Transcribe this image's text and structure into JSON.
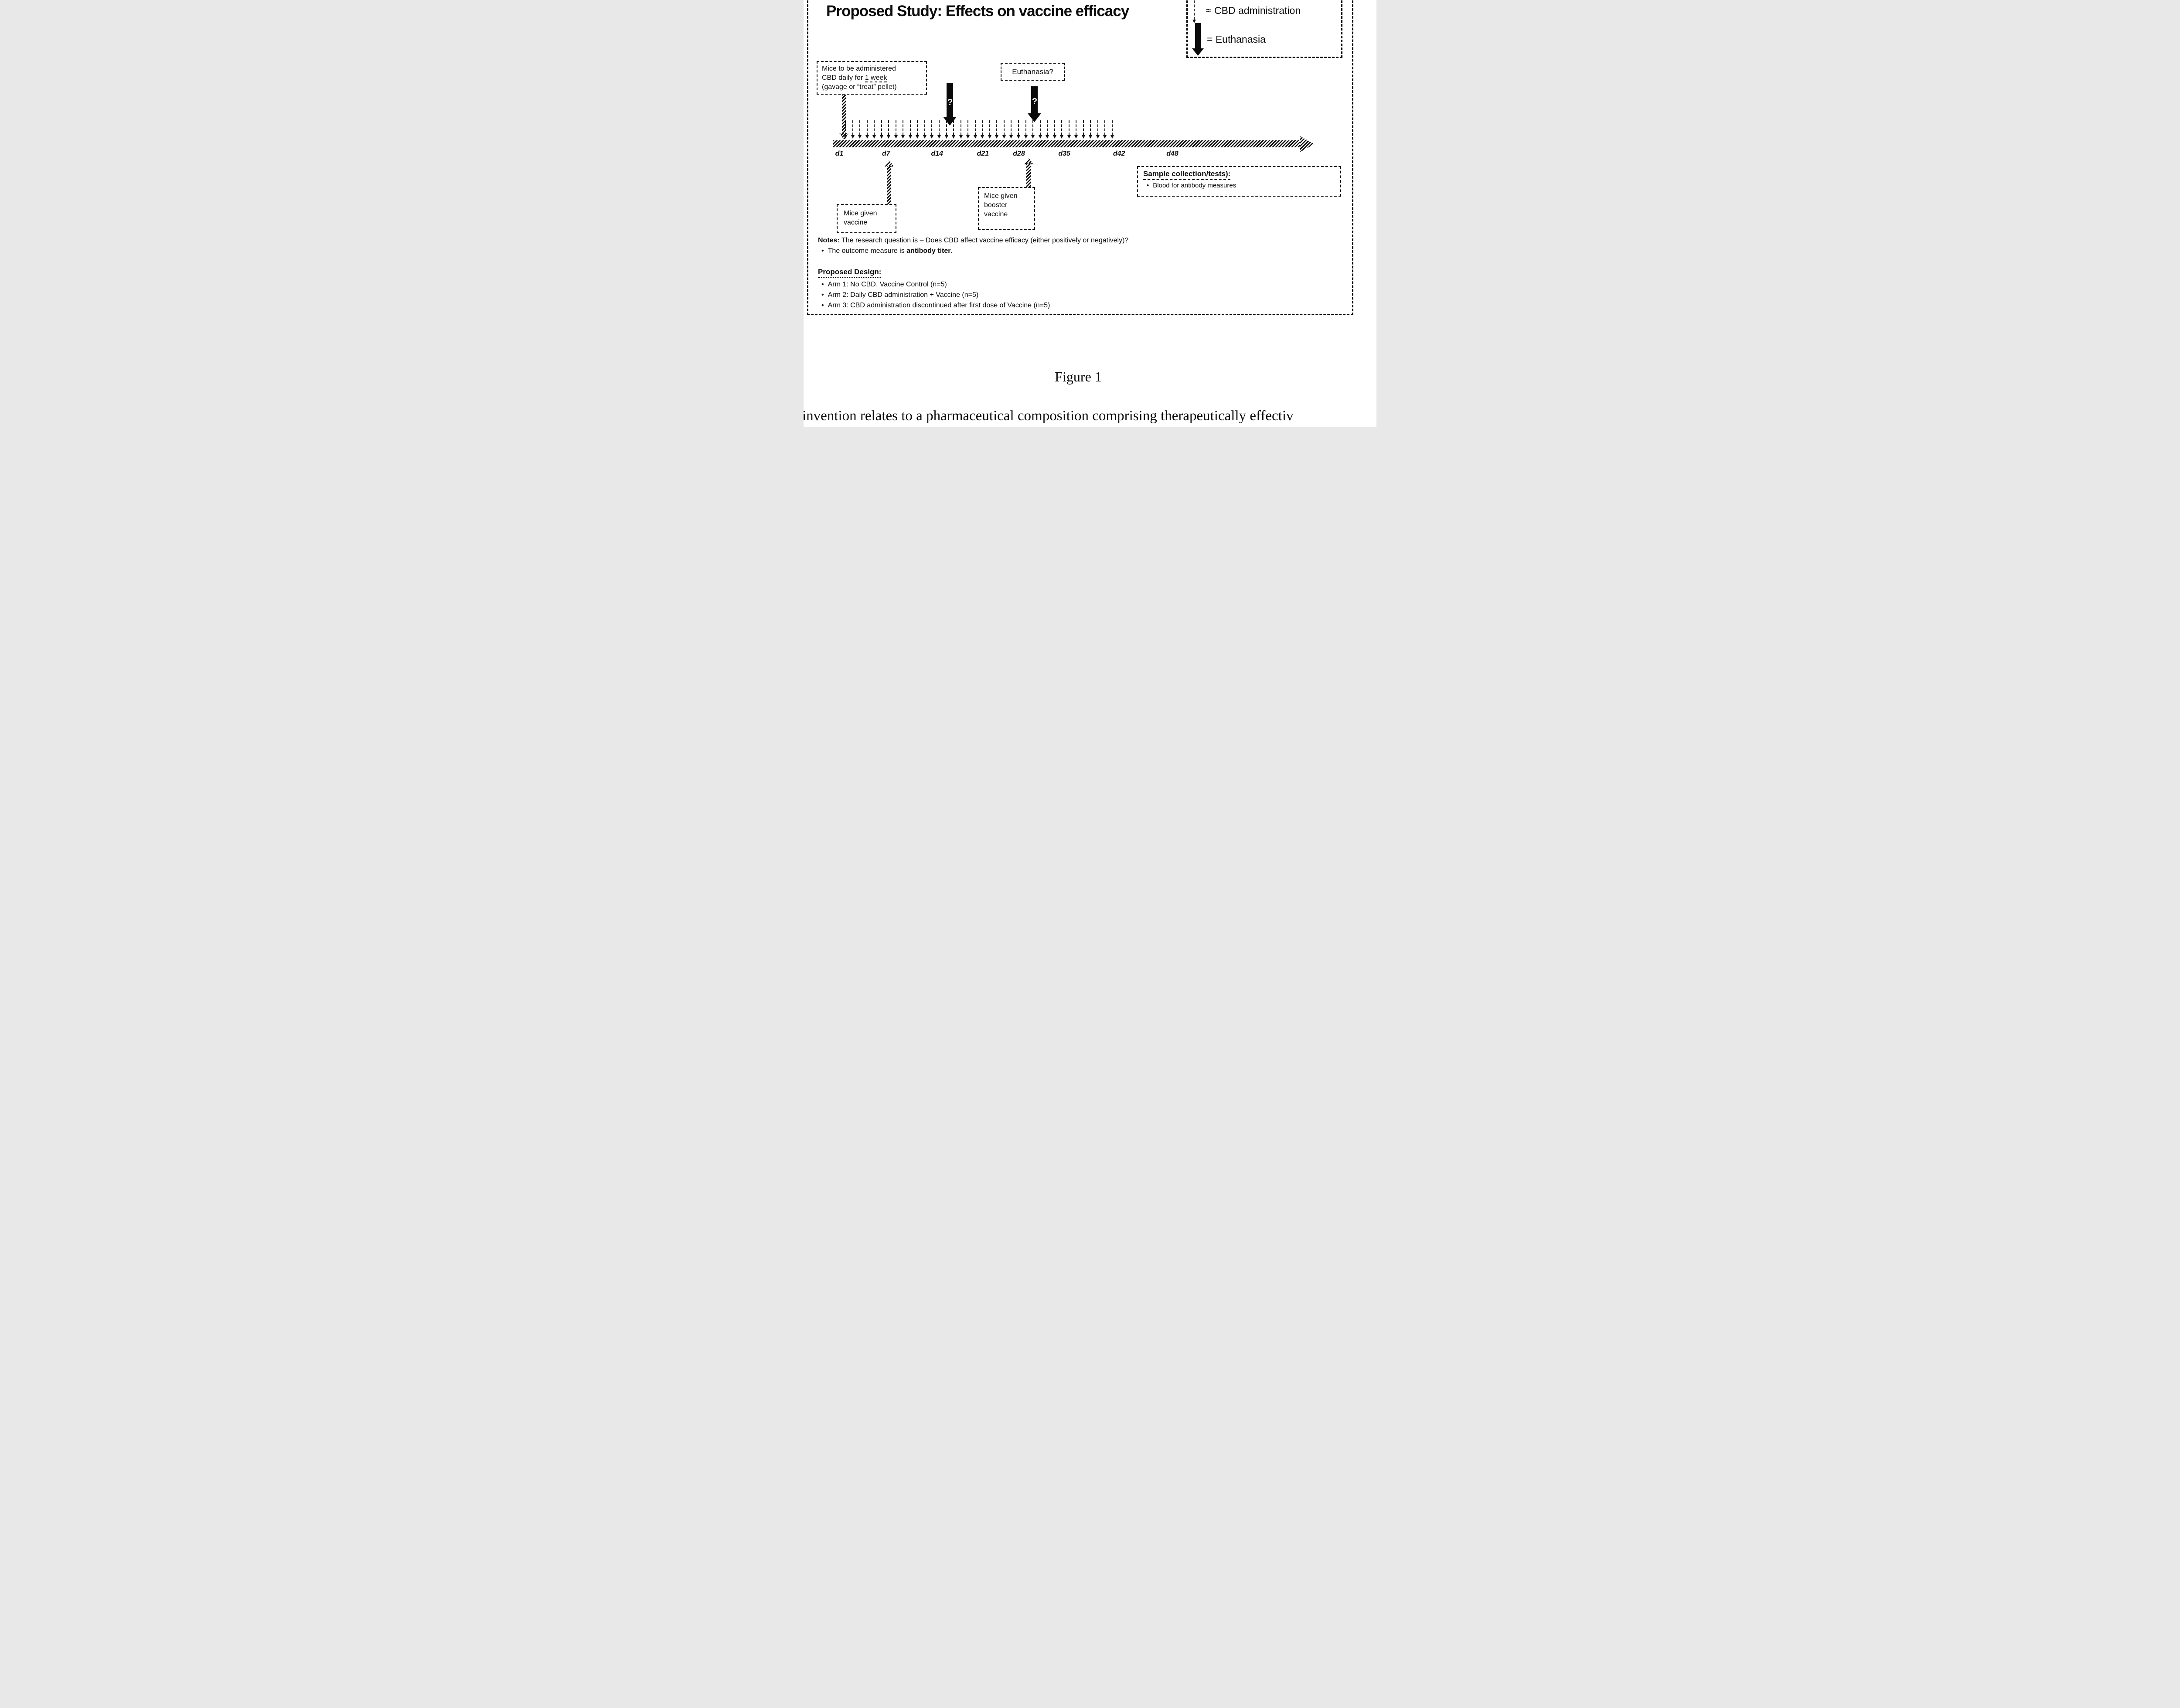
{
  "figure": {
    "title": "Proposed Study: Effects on vaccine efficacy",
    "caption": "Figure 1",
    "footer_text": "invention relates to a pharmaceutical composition comprising therapeutically effectiv"
  },
  "legend": {
    "items": [
      {
        "icon": "cbd-administration-arrow-icon",
        "label": "≈ CBD administration"
      },
      {
        "icon": "euthanasia-arrow-icon",
        "label": "= Euthanasia"
      }
    ]
  },
  "annotations": {
    "cbd_box": {
      "line1": "Mice to be administered",
      "line2_pre": "CBD daily for ",
      "line2_underlined": "1 week",
      "line3": "(gavage or “treat” pellet)"
    },
    "euthanasia_box": "Euthanasia?",
    "vaccine_box": {
      "line1": "Mice given",
      "line2": "vaccine"
    },
    "booster_box": {
      "line1": "Mice given",
      "line2": "booster",
      "line3": "vaccine"
    },
    "sample_box": {
      "heading": "Sample collection/tests):",
      "bullet": "Blood for antibody measures"
    }
  },
  "timeline": {
    "ticks": [
      {
        "label": "d1",
        "pos": 1.4
      },
      {
        "label": "d7",
        "pos": 11.4
      },
      {
        "label": "d14",
        "pos": 22.3
      },
      {
        "label": "d21",
        "pos": 32.1
      },
      {
        "label": "d28",
        "pos": 39.8
      },
      {
        "label": "d35",
        "pos": 49.5
      },
      {
        "label": "d42",
        "pos": 61.2
      },
      {
        "label": "d48",
        "pos": 72.6
      }
    ],
    "cbd_arrow_count": 38,
    "question_mark": "?"
  },
  "notes": {
    "heading": "Notes:",
    "intro": " The research question is – Does CBD affect vaccine efficacy (either positively or negatively)?",
    "bullet_pre": "The outcome measure is ",
    "bullet_bold": "antibody titer",
    "bullet_post": "."
  },
  "design": {
    "heading": "Proposed Design:",
    "bullets": [
      "Arm 1: No CBD, Vaccine Control (n=5)",
      "Arm 2: Daily CBD administration + Vaccine (n=5)",
      "Arm 3: CBD administration discontinued after first dose of Vaccine (n=5)"
    ]
  },
  "glyphs": {
    "bullet": "•"
  }
}
